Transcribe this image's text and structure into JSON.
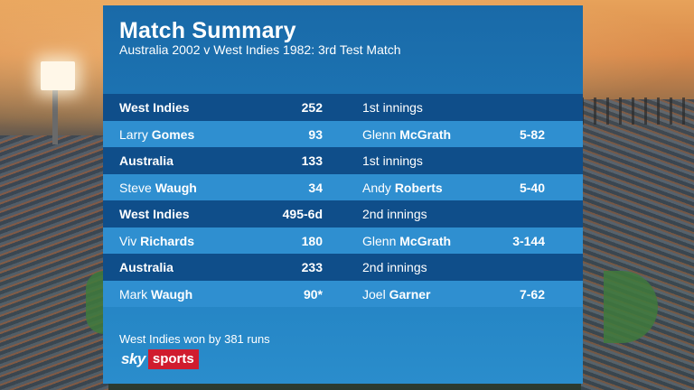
{
  "header": {
    "title": "Match Summary",
    "subtitle": "Australia 2002 v West Indies 1982:  3rd Test Match"
  },
  "rows": [
    {
      "kind": "team",
      "name": "West Indies",
      "score": "252",
      "innings": "1st innings"
    },
    {
      "kind": "player",
      "first": "Larry",
      "last": "Gomes",
      "runs": "93",
      "bowler_first": "Glenn",
      "bowler_last": "McGrath",
      "figures": "5-82"
    },
    {
      "kind": "team",
      "name": "Australia",
      "score": "133",
      "innings": "1st innings"
    },
    {
      "kind": "player",
      "first": "Steve",
      "last": "Waugh",
      "runs": "34",
      "bowler_first": "Andy",
      "bowler_last": "Roberts",
      "figures": "5-40"
    },
    {
      "kind": "team",
      "name": "West Indies",
      "score": "495-6d",
      "innings": "2nd innings"
    },
    {
      "kind": "player",
      "first": "Viv",
      "last": "Richards",
      "runs": "180",
      "bowler_first": "Glenn",
      "bowler_last": "McGrath",
      "figures": "3-144"
    },
    {
      "kind": "team",
      "name": "Australia",
      "score": "233",
      "innings": "2nd innings"
    },
    {
      "kind": "player",
      "first": "Mark",
      "last": "Waugh",
      "runs": "90*",
      "bowler_first": "Joel",
      "bowler_last": "Garner",
      "figures": "7-62"
    }
  ],
  "footer": {
    "result": "West Indies won by 381 runs",
    "logo_sky": "sky",
    "logo_sports": "sports"
  },
  "colors": {
    "panel": "#1d78b8",
    "team_row": "#0f4e8a",
    "player_row": "#2f8fd0",
    "logo_red": "#d01c2e"
  }
}
